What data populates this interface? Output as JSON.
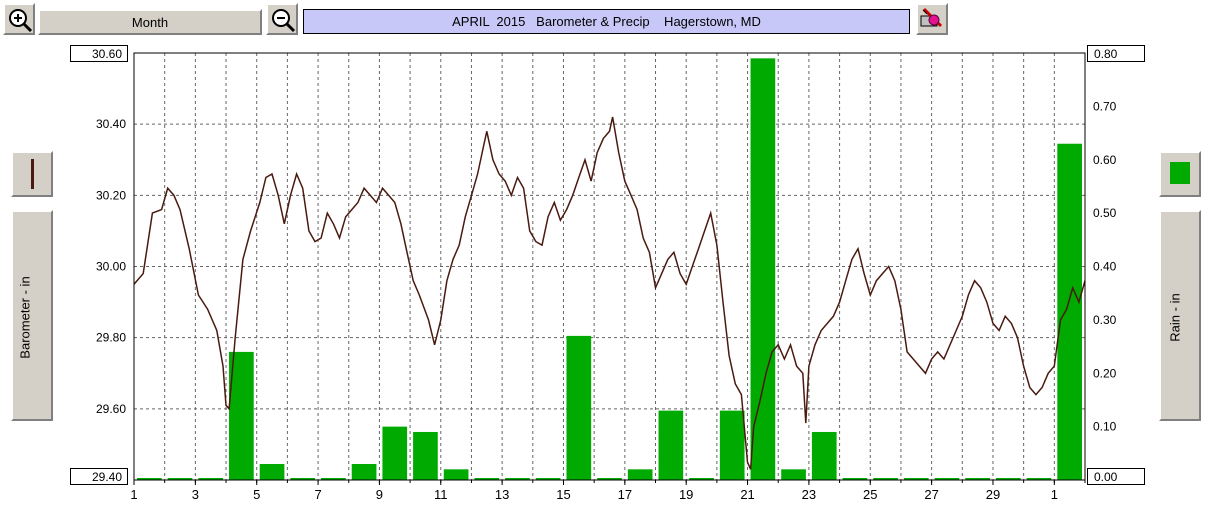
{
  "toolbar": {
    "zoom_in_icon": "magnifier-plus-icon",
    "zoom_out_icon": "magnifier-minus-icon",
    "period_label": "Month",
    "title": "APRIL  2015   Barometer & Precip    Hagerstown, MD",
    "print_icon": "printer-pen-icon"
  },
  "legend": {
    "left_label": "Barometer - in",
    "right_label": "Rain - in",
    "barometer_color": "#4a1a10",
    "rain_color": "#00aa00"
  },
  "chart_data": {
    "type": "bar+line",
    "title": "APRIL  2015   Barometer & Precip    Hagerstown, MD",
    "x_tick_labels": [
      "1",
      "3",
      "5",
      "7",
      "9",
      "11",
      "13",
      "15",
      "17",
      "19",
      "21",
      "23",
      "25",
      "27",
      "29",
      "1"
    ],
    "x_range": [
      1,
      32
    ],
    "left_axis": {
      "label": "Barometer - in",
      "range": [
        29.4,
        30.6
      ],
      "tick_labels": [
        "30.60",
        "30.40",
        "30.20",
        "30.00",
        "29.80",
        "29.60",
        "29.40"
      ]
    },
    "right_axis": {
      "label": "Rain - in",
      "range": [
        0,
        0.8
      ],
      "tick_labels": [
        "0.80",
        "0.70",
        "0.60",
        "0.50",
        "0.40",
        "0.30",
        "0.20",
        "0.10",
        "0.00"
      ]
    },
    "grid": true,
    "series": [
      {
        "name": "Rain - in",
        "type": "bar",
        "color": "#00aa00",
        "days": [
          1,
          2,
          3,
          4,
          5,
          6,
          7,
          8,
          9,
          10,
          11,
          12,
          13,
          14,
          15,
          16,
          17,
          18,
          19,
          20,
          21,
          22,
          23,
          24,
          25,
          26,
          27,
          28,
          29,
          30,
          31
        ],
        "values": [
          0,
          0,
          0,
          0.24,
          0.03,
          0,
          0,
          0.03,
          0.1,
          0.09,
          0.02,
          0,
          0,
          0,
          0.27,
          0,
          0.02,
          0.13,
          0,
          0.13,
          0.79,
          0.02,
          0.09,
          0,
          0,
          0,
          0,
          0,
          0,
          0,
          0.63
        ]
      },
      {
        "name": "Barometer - in",
        "type": "line",
        "color": "#4a1a10",
        "points": [
          [
            1.0,
            29.95
          ],
          [
            1.3,
            29.98
          ],
          [
            1.6,
            30.15
          ],
          [
            1.9,
            30.16
          ],
          [
            2.1,
            30.22
          ],
          [
            2.3,
            30.2
          ],
          [
            2.5,
            30.16
          ],
          [
            2.8,
            30.05
          ],
          [
            3.1,
            29.92
          ],
          [
            3.4,
            29.88
          ],
          [
            3.7,
            29.82
          ],
          [
            3.9,
            29.72
          ],
          [
            4.0,
            29.61
          ],
          [
            4.1,
            29.6
          ],
          [
            4.3,
            29.8
          ],
          [
            4.55,
            30.02
          ],
          [
            4.8,
            30.1
          ],
          [
            5.1,
            30.18
          ],
          [
            5.3,
            30.25
          ],
          [
            5.5,
            30.26
          ],
          [
            5.7,
            30.2
          ],
          [
            5.9,
            30.12
          ],
          [
            6.1,
            30.2
          ],
          [
            6.3,
            30.26
          ],
          [
            6.5,
            30.22
          ],
          [
            6.7,
            30.1
          ],
          [
            6.9,
            30.07
          ],
          [
            7.1,
            30.08
          ],
          [
            7.3,
            30.15
          ],
          [
            7.5,
            30.12
          ],
          [
            7.7,
            30.08
          ],
          [
            7.9,
            30.14
          ],
          [
            8.1,
            30.16
          ],
          [
            8.3,
            30.18
          ],
          [
            8.5,
            30.22
          ],
          [
            8.7,
            30.2
          ],
          [
            8.9,
            30.18
          ],
          [
            9.1,
            30.22
          ],
          [
            9.3,
            30.2
          ],
          [
            9.5,
            30.18
          ],
          [
            9.7,
            30.12
          ],
          [
            9.9,
            30.04
          ],
          [
            10.1,
            29.96
          ],
          [
            10.3,
            29.92
          ],
          [
            10.6,
            29.85
          ],
          [
            10.8,
            29.78
          ],
          [
            11.0,
            29.85
          ],
          [
            11.2,
            29.96
          ],
          [
            11.4,
            30.02
          ],
          [
            11.6,
            30.06
          ],
          [
            11.8,
            30.14
          ],
          [
            12.0,
            30.2
          ],
          [
            12.2,
            30.26
          ],
          [
            12.4,
            30.34
          ],
          [
            12.5,
            30.38
          ],
          [
            12.7,
            30.3
          ],
          [
            12.9,
            30.26
          ],
          [
            13.1,
            30.24
          ],
          [
            13.3,
            30.2
          ],
          [
            13.5,
            30.25
          ],
          [
            13.7,
            30.22
          ],
          [
            13.9,
            30.1
          ],
          [
            14.1,
            30.07
          ],
          [
            14.3,
            30.06
          ],
          [
            14.5,
            30.14
          ],
          [
            14.7,
            30.18
          ],
          [
            14.9,
            30.13
          ],
          [
            15.1,
            30.16
          ],
          [
            15.3,
            30.2
          ],
          [
            15.5,
            30.25
          ],
          [
            15.7,
            30.3
          ],
          [
            15.9,
            30.24
          ],
          [
            16.1,
            30.32
          ],
          [
            16.3,
            30.36
          ],
          [
            16.5,
            30.38
          ],
          [
            16.6,
            30.42
          ],
          [
            16.8,
            30.32
          ],
          [
            17.0,
            30.24
          ],
          [
            17.2,
            30.2
          ],
          [
            17.4,
            30.16
          ],
          [
            17.6,
            30.08
          ],
          [
            17.8,
            30.04
          ],
          [
            18.0,
            29.94
          ],
          [
            18.2,
            29.98
          ],
          [
            18.4,
            30.02
          ],
          [
            18.6,
            30.04
          ],
          [
            18.8,
            29.98
          ],
          [
            19.0,
            29.95
          ],
          [
            19.2,
            30.0
          ],
          [
            19.4,
            30.05
          ],
          [
            19.6,
            30.1
          ],
          [
            19.8,
            30.15
          ],
          [
            20.0,
            30.06
          ],
          [
            20.2,
            29.9
          ],
          [
            20.4,
            29.75
          ],
          [
            20.6,
            29.67
          ],
          [
            20.8,
            29.64
          ],
          [
            21.0,
            29.45
          ],
          [
            21.1,
            29.43
          ],
          [
            21.2,
            29.55
          ],
          [
            21.4,
            29.62
          ],
          [
            21.6,
            29.7
          ],
          [
            21.8,
            29.76
          ],
          [
            22.0,
            29.78
          ],
          [
            22.2,
            29.74
          ],
          [
            22.4,
            29.78
          ],
          [
            22.6,
            29.72
          ],
          [
            22.8,
            29.7
          ],
          [
            22.9,
            29.56
          ],
          [
            23.0,
            29.72
          ],
          [
            23.2,
            29.78
          ],
          [
            23.4,
            29.82
          ],
          [
            23.6,
            29.84
          ],
          [
            23.8,
            29.86
          ],
          [
            24.0,
            29.9
          ],
          [
            24.2,
            29.96
          ],
          [
            24.4,
            30.02
          ],
          [
            24.6,
            30.05
          ],
          [
            24.8,
            29.98
          ],
          [
            25.0,
            29.92
          ],
          [
            25.2,
            29.96
          ],
          [
            25.4,
            29.98
          ],
          [
            25.6,
            30.0
          ],
          [
            25.8,
            29.96
          ],
          [
            26.0,
            29.88
          ],
          [
            26.2,
            29.76
          ],
          [
            26.4,
            29.74
          ],
          [
            26.6,
            29.72
          ],
          [
            26.8,
            29.7
          ],
          [
            27.0,
            29.74
          ],
          [
            27.2,
            29.76
          ],
          [
            27.4,
            29.74
          ],
          [
            27.6,
            29.78
          ],
          [
            27.8,
            29.82
          ],
          [
            28.0,
            29.86
          ],
          [
            28.2,
            29.92
          ],
          [
            28.4,
            29.96
          ],
          [
            28.6,
            29.94
          ],
          [
            28.8,
            29.9
          ],
          [
            29.0,
            29.84
          ],
          [
            29.2,
            29.82
          ],
          [
            29.4,
            29.86
          ],
          [
            29.6,
            29.84
          ],
          [
            29.8,
            29.8
          ],
          [
            30.0,
            29.72
          ],
          [
            30.2,
            29.66
          ],
          [
            30.4,
            29.64
          ],
          [
            30.6,
            29.66
          ],
          [
            30.8,
            29.7
          ],
          [
            31.0,
            29.72
          ],
          [
            31.2,
            29.85
          ],
          [
            31.4,
            29.88
          ],
          [
            31.6,
            29.94
          ],
          [
            31.8,
            29.9
          ],
          [
            32.0,
            29.96
          ]
        ]
      }
    ]
  }
}
